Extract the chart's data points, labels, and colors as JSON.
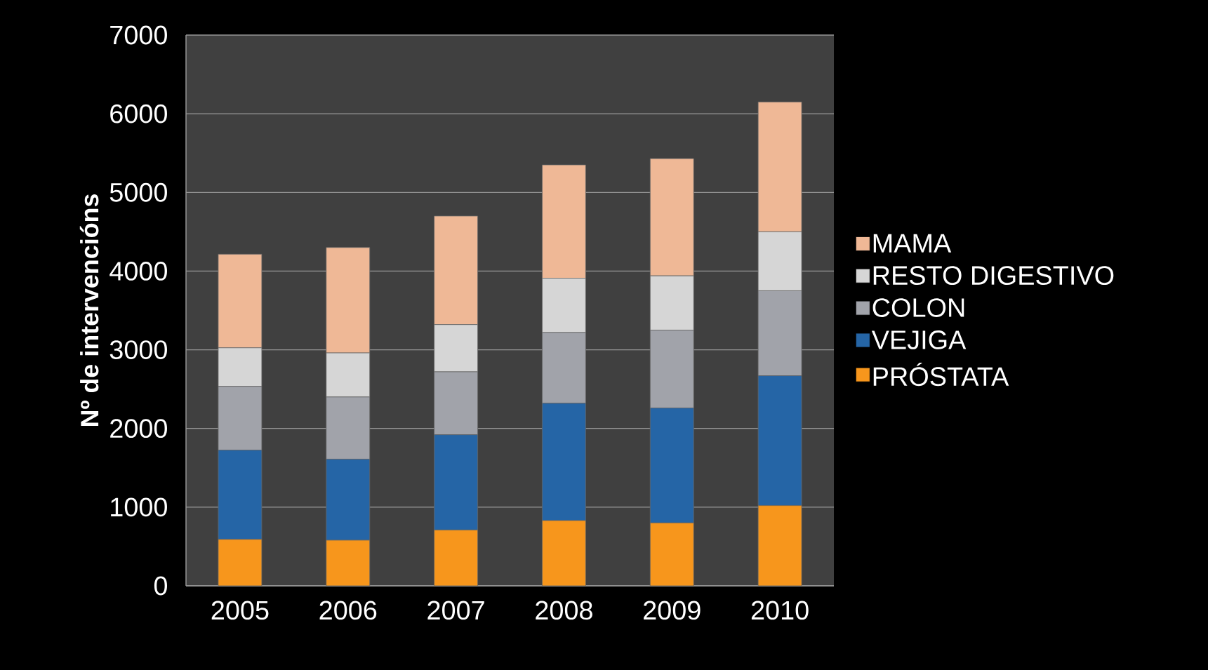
{
  "chart_data": {
    "type": "bar",
    "stacked": true,
    "ylabel": "Nº de intervencións",
    "categories": [
      "2005",
      "2006",
      "2007",
      "2008",
      "2009",
      "2010"
    ],
    "series": [
      {
        "name": "PRÓSTATA",
        "color": "#f7961c",
        "values": [
          590,
          580,
          710,
          830,
          800,
          1020
        ]
      },
      {
        "name": "VEJIGA",
        "color": "#2565a6",
        "values": [
          1135,
          1030,
          1210,
          1490,
          1460,
          1650
        ]
      },
      {
        "name": "COLON",
        "color": "#a1a3aa",
        "values": [
          810,
          790,
          800,
          900,
          990,
          1080
        ]
      },
      {
        "name": "RESTO DIGESTIVO",
        "color": "#d6d6d6",
        "values": [
          490,
          560,
          600,
          690,
          690,
          750
        ]
      },
      {
        "name": "MAMA",
        "color": "#efb896",
        "values": [
          1190,
          1340,
          1380,
          1440,
          1490,
          1650
        ]
      }
    ],
    "ylim": [
      0,
      7000
    ],
    "yticks": [
      0,
      1000,
      2000,
      3000,
      4000,
      5000,
      6000,
      7000
    ],
    "grid": "y",
    "legend": "right"
  }
}
